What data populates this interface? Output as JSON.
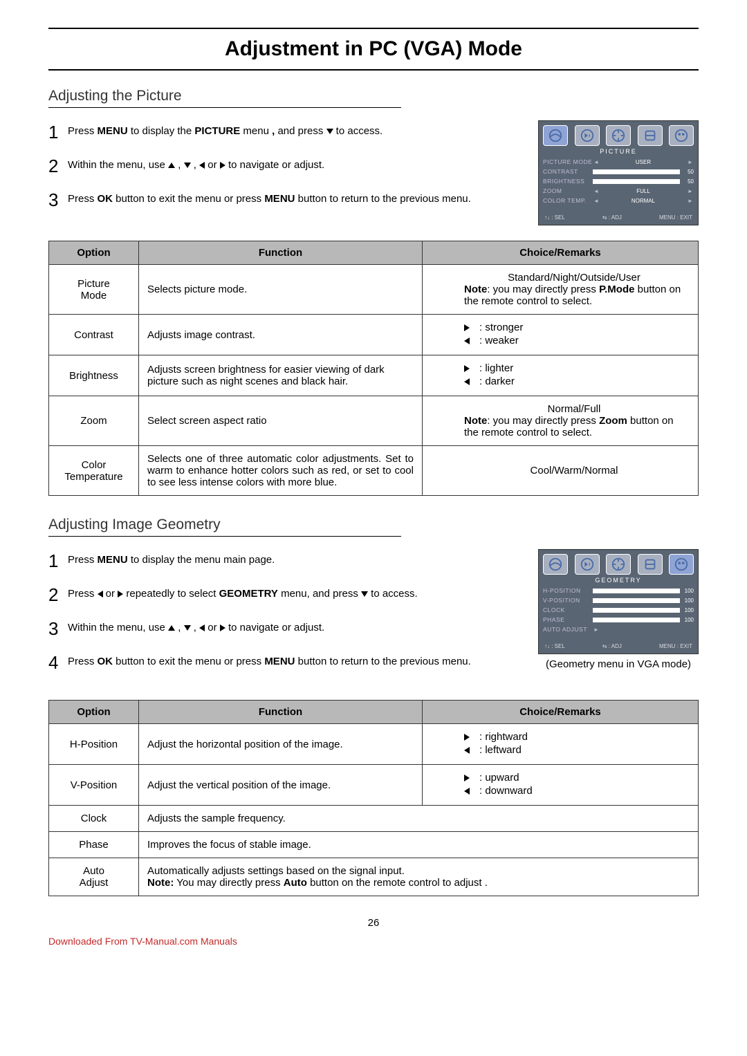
{
  "page_title": "Adjustment in PC (VGA) Mode",
  "page_number": "26",
  "footer_link": "Downloaded From TV-Manual.com Manuals",
  "picture_section": {
    "heading": "Adjusting the Picture",
    "steps": [
      {
        "n": "1",
        "html": "Press <b>MENU</b> to display the <b>PICTURE</b> menu <b>,</b> and press <span class='tri tri-down'></span> to access."
      },
      {
        "n": "2",
        "html": "Within the menu, use <span class='tri tri-up'></span> , <span class='tri tri-down'></span> , <span class='tri tri-left'></span> or <span class='tri tri-right'></span> to navigate or adjust."
      },
      {
        "n": "3",
        "html": "Press <b>OK</b> button to exit the menu  or press <b>MENU</b>  button to return to the previous menu."
      }
    ],
    "osd": {
      "title": "PICTURE",
      "rows": [
        {
          "label": "PICTURE MODE",
          "type": "value",
          "value": "USER"
        },
        {
          "label": "CONTRAST",
          "type": "bar",
          "num": "50"
        },
        {
          "label": "BRIGHTNESS",
          "type": "bar",
          "num": "50"
        },
        {
          "label": "ZOOM",
          "type": "value",
          "value": "FULL"
        },
        {
          "label": "COLOR TEMP.",
          "type": "value",
          "value": "NORMAL"
        }
      ],
      "active_tab": 0,
      "footer": [
        "↑↓ : SEL",
        "⇆ : ADJ",
        "MENU : EXIT"
      ]
    },
    "table": {
      "headers": [
        "Option",
        "Function",
        "Choice/Remarks"
      ],
      "rows": [
        {
          "opt": "Picture Mode",
          "func": "Selects picture mode.",
          "remark_html": "<div style='text-align:center'>Standard/Night/Outside/User</div><b>Note</b>: you may directly press <b>P.Mode</b> button on the remote control to select."
        },
        {
          "opt": "Contrast",
          "func": "Adjusts image contrast.",
          "remark_html": "<div class='remark-line'><span class='remark-arrow'><span class='tri tri-right'></span></span>: stronger</div><div class='remark-line'><span class='remark-arrow'><span class='tri tri-left'></span></span>: weaker</div>"
        },
        {
          "opt": "Brightness",
          "func": "Adjusts screen brightness for easier viewing of dark picture such as night scenes and black hair.",
          "remark_html": "<div class='remark-line'><span class='remark-arrow'><span class='tri tri-right'></span></span>: lighter</div><div class='remark-line'><span class='remark-arrow'><span class='tri tri-left'></span></span>: darker</div>"
        },
        {
          "opt": "Zoom",
          "func": "Select screen aspect ratio",
          "remark_html": "<div style='text-align:center'>Normal/Full</div><b>Note</b>: you may directly press <b>Zoom</b> button on the remote control to select."
        },
        {
          "opt": "Color Temperature",
          "func_html": "Selects one of three automatic color adjustments. Set to warm to enhance hotter colors such as red, or set to cool to see less intense colors with more blue.",
          "remark_html": "<div style='text-align:center'>Cool/Warm/Normal</div>"
        }
      ]
    }
  },
  "geometry_section": {
    "heading": "Adjusting Image Geometry",
    "steps": [
      {
        "n": "1",
        "html": "Press <b>MENU</b> to display the menu main page."
      },
      {
        "n": "2",
        "html": "Press <span class='tri tri-left'></span> or <span class='tri tri-right'></span> repeatedly to select <b>GEOMETRY</b> menu, and press <span class='tri tri-down'></span> to access."
      },
      {
        "n": "3",
        "html": "Within the menu, use <span class='tri tri-up'></span> , <span class='tri tri-down'></span> , <span class='tri tri-left'></span> or <span class='tri tri-right'></span> to navigate or adjust."
      },
      {
        "n": "4",
        "html": "Press <b>OK</b> button to exit the menu  or press <b>MENU</b>  button to return to the previous menu."
      }
    ],
    "osd": {
      "title": "GEOMETRY",
      "rows": [
        {
          "label": "H-POSITION",
          "type": "bar",
          "num": "100"
        },
        {
          "label": "V-POSITION",
          "type": "bar",
          "num": "100"
        },
        {
          "label": "CLOCK",
          "type": "bar",
          "num": "100"
        },
        {
          "label": "PHASE",
          "type": "bar",
          "num": "100"
        },
        {
          "label": "AUTO ADJUST",
          "type": "action"
        }
      ],
      "active_tab": 4,
      "footer": [
        "↑↓ : SEL",
        "⇆ : ADJ",
        "MENU : EXIT"
      ],
      "caption": "(Geometry menu in VGA mode)"
    },
    "table": {
      "headers": [
        "Option",
        "Function",
        "Choice/Remarks"
      ],
      "rows": [
        {
          "opt": "H-Position",
          "func": "Adjust the horizontal position of the image.",
          "remark_html": "<div class='remark-line'><span class='remark-arrow'><span class='tri tri-right'></span></span>: rightward</div><div class='remark-line'><span class='remark-arrow'><span class='tri tri-left'></span></span>: leftward</div>"
        },
        {
          "opt": "V-Position",
          "func": "Adjust the vertical position of the image.",
          "remark_html": "<div class='remark-line'><span class='remark-arrow'><span class='tri tri-right'></span></span>: upward</div><div class='remark-line'><span class='remark-arrow'><span class='tri tri-left'></span></span>: downward</div>"
        },
        {
          "opt": "Clock",
          "func": "Adjusts the sample frequency.",
          "merged": true
        },
        {
          "opt": "Phase",
          "func": "Improves the focus of stable image.",
          "merged": true
        },
        {
          "opt": "Auto Adjust",
          "func_html": "Automatically adjusts settings based on the signal input.<br><b>Note:</b> You may directly press <b>Auto</b> button on the remote control to adjust .",
          "merged": true
        }
      ]
    }
  },
  "osd_icons": [
    "picture",
    "sound",
    "tune",
    "setup",
    "geometry"
  ],
  "colors": {
    "osd_bg": "#5a6573",
    "osd_label": "#c0bed6",
    "table_header": "#b8b8b8",
    "link": "#c42a2a"
  }
}
